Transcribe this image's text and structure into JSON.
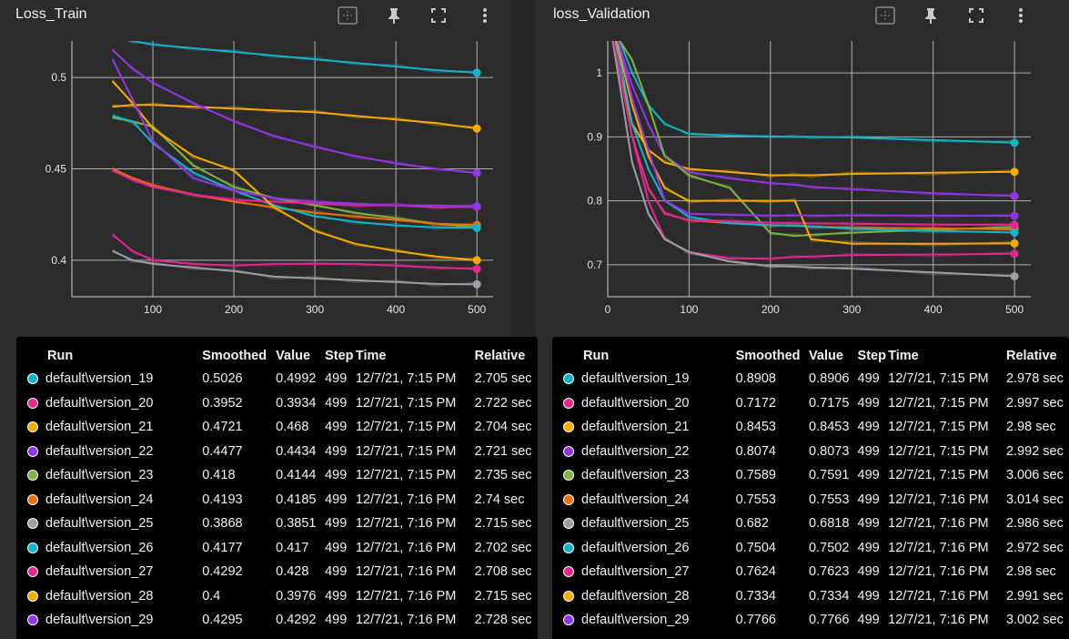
{
  "panels": [
    {
      "title": "Loss_Train",
      "icons": [
        "fit-domain-icon",
        "pin-icon",
        "fullscreen-icon",
        "more-icon"
      ],
      "legend": {
        "headers": [
          "Run",
          "Smoothed",
          "Value",
          "Step",
          "Time",
          "Relative"
        ],
        "rows": [
          {
            "run": "default\\version_19",
            "smoothed": "0.5026",
            "value": "0.4992",
            "step": "499",
            "time": "12/7/21, 7:15 PM",
            "relative": "2.705 sec",
            "color": "#12b5cb"
          },
          {
            "run": "default\\version_20",
            "smoothed": "0.3952",
            "value": "0.3934",
            "step": "499",
            "time": "12/7/21, 7:15 PM",
            "relative": "2.722 sec",
            "color": "#e52592"
          },
          {
            "run": "default\\version_21",
            "smoothed": "0.4721",
            "value": "0.468",
            "step": "499",
            "time": "12/7/21, 7:15 PM",
            "relative": "2.704 sec",
            "color": "#f9ab00"
          },
          {
            "run": "default\\version_22",
            "smoothed": "0.4477",
            "value": "0.4434",
            "step": "499",
            "time": "12/7/21, 7:15 PM",
            "relative": "2.721 sec",
            "color": "#9334e6"
          },
          {
            "run": "default\\version_23",
            "smoothed": "0.418",
            "value": "0.4144",
            "step": "499",
            "time": "12/7/21, 7:15 PM",
            "relative": "2.735 sec",
            "color": "#7cb342"
          },
          {
            "run": "default\\version_24",
            "smoothed": "0.4193",
            "value": "0.4185",
            "step": "499",
            "time": "12/7/21, 7:16 PM",
            "relative": "2.74 sec",
            "color": "#e8710a"
          },
          {
            "run": "default\\version_25",
            "smoothed": "0.3868",
            "value": "0.3851",
            "step": "499",
            "time": "12/7/21, 7:16 PM",
            "relative": "2.715 sec",
            "color": "#9aa0a6"
          },
          {
            "run": "default\\version_26",
            "smoothed": "0.4177",
            "value": "0.417",
            "step": "499",
            "time": "12/7/21, 7:16 PM",
            "relative": "2.702 sec",
            "color": "#12b5cb"
          },
          {
            "run": "default\\version_27",
            "smoothed": "0.4292",
            "value": "0.428",
            "step": "499",
            "time": "12/7/21, 7:16 PM",
            "relative": "2.708 sec",
            "color": "#e52592"
          },
          {
            "run": "default\\version_28",
            "smoothed": "0.4",
            "value": "0.3976",
            "step": "499",
            "time": "12/7/21, 7:16 PM",
            "relative": "2.715 sec",
            "color": "#f9ab00"
          },
          {
            "run": "default\\version_29",
            "smoothed": "0.4295",
            "value": "0.4292",
            "step": "499",
            "time": "12/7/21, 7:16 PM",
            "relative": "2.728 sec",
            "color": "#9334e6"
          }
        ]
      }
    },
    {
      "title": "loss_Validation",
      "icons": [
        "fit-domain-icon",
        "pin-icon",
        "fullscreen-icon",
        "more-icon"
      ],
      "legend": {
        "headers": [
          "Run",
          "Smoothed",
          "Value",
          "Step",
          "Time",
          "Relative"
        ],
        "rows": [
          {
            "run": "default\\version_19",
            "smoothed": "0.8908",
            "value": "0.8906",
            "step": "499",
            "time": "12/7/21, 7:15 PM",
            "relative": "2.978 sec",
            "color": "#12b5cb"
          },
          {
            "run": "default\\version_20",
            "smoothed": "0.7172",
            "value": "0.7175",
            "step": "499",
            "time": "12/7/21, 7:15 PM",
            "relative": "2.997 sec",
            "color": "#e52592"
          },
          {
            "run": "default\\version_21",
            "smoothed": "0.8453",
            "value": "0.8453",
            "step": "499",
            "time": "12/7/21, 7:15 PM",
            "relative": "2.98 sec",
            "color": "#f9ab00"
          },
          {
            "run": "default\\version_22",
            "smoothed": "0.8074",
            "value": "0.8073",
            "step": "499",
            "time": "12/7/21, 7:15 PM",
            "relative": "2.992 sec",
            "color": "#9334e6"
          },
          {
            "run": "default\\version_23",
            "smoothed": "0.7589",
            "value": "0.7591",
            "step": "499",
            "time": "12/7/21, 7:15 PM",
            "relative": "3.006 sec",
            "color": "#7cb342"
          },
          {
            "run": "default\\version_24",
            "smoothed": "0.7553",
            "value": "0.7553",
            "step": "499",
            "time": "12/7/21, 7:16 PM",
            "relative": "3.014 sec",
            "color": "#e8710a"
          },
          {
            "run": "default\\version_25",
            "smoothed": "0.682",
            "value": "0.6818",
            "step": "499",
            "time": "12/7/21, 7:16 PM",
            "relative": "2.986 sec",
            "color": "#9aa0a6"
          },
          {
            "run": "default\\version_26",
            "smoothed": "0.7504",
            "value": "0.7502",
            "step": "499",
            "time": "12/7/21, 7:16 PM",
            "relative": "2.972 sec",
            "color": "#12b5cb"
          },
          {
            "run": "default\\version_27",
            "smoothed": "0.7624",
            "value": "0.7623",
            "step": "499",
            "time": "12/7/21, 7:16 PM",
            "relative": "2.98 sec",
            "color": "#e52592"
          },
          {
            "run": "default\\version_28",
            "smoothed": "0.7334",
            "value": "0.7334",
            "step": "499",
            "time": "12/7/21, 7:16 PM",
            "relative": "2.991 sec",
            "color": "#f9ab00"
          },
          {
            "run": "default\\version_29",
            "smoothed": "0.7766",
            "value": "0.7766",
            "step": "499",
            "time": "12/7/21, 7:16 PM",
            "relative": "3.002 sec",
            "color": "#9334e6"
          }
        ]
      }
    }
  ],
  "chart_data": [
    {
      "type": "line",
      "title": "Loss_Train",
      "xlabel": "",
      "ylabel": "",
      "xlim": [
        0,
        520
      ],
      "ylim": [
        0.38,
        0.52
      ],
      "x_ticks": [
        "100",
        "200",
        "300",
        "400",
        "500"
      ],
      "y_ticks": [
        "0.4",
        "0.45",
        "0.5"
      ],
      "grid": true,
      "x": [
        50,
        75,
        100,
        150,
        200,
        250,
        300,
        350,
        400,
        450,
        500
      ],
      "series": [
        {
          "name": "default\\version_19",
          "color": "#12b5cb",
          "values": [
            0.522,
            0.52,
            0.518,
            0.516,
            0.514,
            0.512,
            0.51,
            0.508,
            0.506,
            0.504,
            0.5026
          ]
        },
        {
          "name": "default\\version_20",
          "color": "#e52592",
          "values": [
            0.414,
            0.405,
            0.4,
            0.398,
            0.397,
            0.398,
            0.398,
            0.398,
            0.397,
            0.396,
            0.3952
          ]
        },
        {
          "name": "default\\version_21",
          "color": "#f9ab00",
          "values": [
            0.484,
            0.485,
            0.485,
            0.484,
            0.483,
            0.482,
            0.481,
            0.479,
            0.477,
            0.475,
            0.4721
          ]
        },
        {
          "name": "default\\version_22",
          "color": "#9334e6",
          "values": [
            0.515,
            0.505,
            0.497,
            0.486,
            0.476,
            0.468,
            0.462,
            0.457,
            0.453,
            0.45,
            0.4477
          ]
        },
        {
          "name": "default\\version_23",
          "color": "#7cb342",
          "values": [
            0.478,
            0.476,
            0.473,
            0.452,
            0.44,
            0.434,
            0.43,
            0.426,
            0.423,
            0.42,
            0.418
          ]
        },
        {
          "name": "default\\version_24",
          "color": "#e8710a",
          "values": [
            0.45,
            0.445,
            0.441,
            0.436,
            0.432,
            0.429,
            0.426,
            0.424,
            0.422,
            0.42,
            0.4193
          ]
        },
        {
          "name": "default\\version_25",
          "color": "#9aa0a6",
          "values": [
            0.405,
            0.4,
            0.398,
            0.396,
            0.394,
            0.391,
            0.39,
            0.389,
            0.388,
            0.387,
            0.3868
          ]
        },
        {
          "name": "default\\version_26",
          "color": "#12b5cb",
          "values": [
            0.479,
            0.476,
            0.464,
            0.448,
            0.438,
            0.43,
            0.424,
            0.421,
            0.419,
            0.418,
            0.4177
          ]
        },
        {
          "name": "default\\version_27",
          "color": "#e52592",
          "values": [
            0.449,
            0.444,
            0.44,
            0.436,
            0.433,
            0.432,
            0.431,
            0.43,
            0.43,
            0.429,
            0.4292
          ]
        },
        {
          "name": "default\\version_28",
          "color": "#f9ab00",
          "values": [
            0.498,
            0.486,
            0.472,
            0.457,
            0.449,
            0.429,
            0.416,
            0.409,
            0.405,
            0.402,
            0.4
          ]
        },
        {
          "name": "default\\version_29",
          "color": "#9334e6",
          "values": [
            0.51,
            0.488,
            0.465,
            0.445,
            0.438,
            0.434,
            0.432,
            0.431,
            0.43,
            0.43,
            0.4295
          ]
        }
      ]
    },
    {
      "type": "line",
      "title": "loss_Validation",
      "xlabel": "",
      "ylabel": "",
      "xlim": [
        0,
        520
      ],
      "ylim": [
        0.65,
        1.05
      ],
      "x_ticks": [
        "0",
        "100",
        "200",
        "300",
        "400",
        "500"
      ],
      "y_ticks": [
        "0.7",
        "0.8",
        "0.9",
        "1"
      ],
      "grid": true,
      "x": [
        0,
        15,
        30,
        50,
        70,
        100,
        150,
        200,
        230,
        250,
        300,
        400,
        500
      ],
      "series": [
        {
          "name": "default\\version_19",
          "color": "#12b5cb",
          "values": [
            1.1,
            1.05,
            1.0,
            0.95,
            0.92,
            0.905,
            0.902,
            0.901,
            0.9,
            0.9,
            0.899,
            0.895,
            0.8908
          ]
        },
        {
          "name": "default\\version_20",
          "color": "#e52592",
          "values": [
            1.1,
            1.0,
            0.9,
            0.8,
            0.74,
            0.72,
            0.71,
            0.71,
            0.712,
            0.713,
            0.715,
            0.716,
            0.7172
          ]
        },
        {
          "name": "default\\version_21",
          "color": "#f9ab00",
          "values": [
            1.1,
            1.0,
            0.92,
            0.88,
            0.86,
            0.85,
            0.845,
            0.84,
            0.84,
            0.84,
            0.842,
            0.844,
            0.8453
          ]
        },
        {
          "name": "default\\version_22",
          "color": "#9334e6",
          "values": [
            1.1,
            1.04,
            0.98,
            0.92,
            0.87,
            0.845,
            0.835,
            0.828,
            0.825,
            0.822,
            0.818,
            0.812,
            0.8074
          ]
        },
        {
          "name": "default\\version_23",
          "color": "#7cb342",
          "values": [
            1.1,
            1.05,
            1.02,
            0.95,
            0.87,
            0.84,
            0.82,
            0.75,
            0.745,
            0.747,
            0.75,
            0.755,
            0.7589
          ]
        },
        {
          "name": "default\\version_24",
          "color": "#e8710a",
          "values": [
            1.1,
            1.0,
            0.9,
            0.82,
            0.78,
            0.77,
            0.765,
            0.762,
            0.761,
            0.76,
            0.758,
            0.757,
            0.7553
          ]
        },
        {
          "name": "default\\version_25",
          "color": "#9aa0a6",
          "values": [
            1.1,
            0.98,
            0.86,
            0.78,
            0.74,
            0.72,
            0.705,
            0.698,
            0.697,
            0.696,
            0.694,
            0.688,
            0.682
          ]
        },
        {
          "name": "default\\version_26",
          "color": "#12b5cb",
          "values": [
            1.1,
            1.02,
            0.92,
            0.85,
            0.8,
            0.775,
            0.765,
            0.762,
            0.761,
            0.76,
            0.756,
            0.753,
            0.7504
          ]
        },
        {
          "name": "default\\version_27",
          "color": "#e52592",
          "values": [
            1.1,
            1.0,
            0.9,
            0.82,
            0.78,
            0.77,
            0.768,
            0.766,
            0.765,
            0.765,
            0.764,
            0.763,
            0.7624
          ]
        },
        {
          "name": "default\\version_28",
          "color": "#f9ab00",
          "values": [
            1.1,
            1.03,
            0.95,
            0.87,
            0.82,
            0.8,
            0.8,
            0.8,
            0.8,
            0.74,
            0.733,
            0.733,
            0.7334
          ]
        },
        {
          "name": "default\\version_29",
          "color": "#9334e6",
          "values": [
            1.1,
            1.04,
            0.96,
            0.88,
            0.8,
            0.78,
            0.778,
            0.777,
            0.777,
            0.777,
            0.777,
            0.777,
            0.7766
          ]
        }
      ]
    }
  ]
}
